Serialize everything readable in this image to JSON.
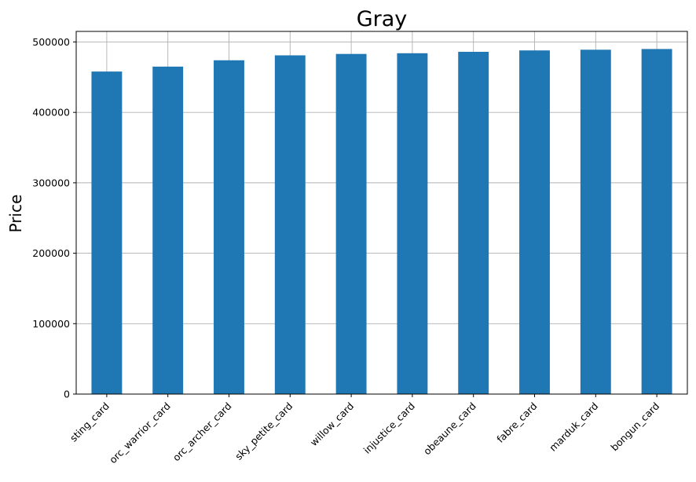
{
  "chart_data": {
    "type": "bar",
    "title": "Gray",
    "xlabel": "",
    "ylabel": "Price",
    "categories": [
      "sting_card",
      "orc_warrior_card",
      "orc_archer_card",
      "sky_petite_card",
      "willow_card",
      "injustice_card",
      "obeaune_card",
      "fabre_card",
      "marduk_card",
      "bongun_card"
    ],
    "values": [
      458000,
      465000,
      474000,
      481000,
      483000,
      484000,
      486000,
      488000,
      489000,
      490000
    ],
    "ylim": [
      0,
      515000
    ],
    "yticks": [
      0,
      100000,
      200000,
      300000,
      400000,
      500000
    ],
    "ytick_labels": [
      "0",
      "100000",
      "200000",
      "300000",
      "400000",
      "500000"
    ],
    "grid": true,
    "bar_color": "#1f77b4",
    "grid_color": "#b0b0b0"
  }
}
